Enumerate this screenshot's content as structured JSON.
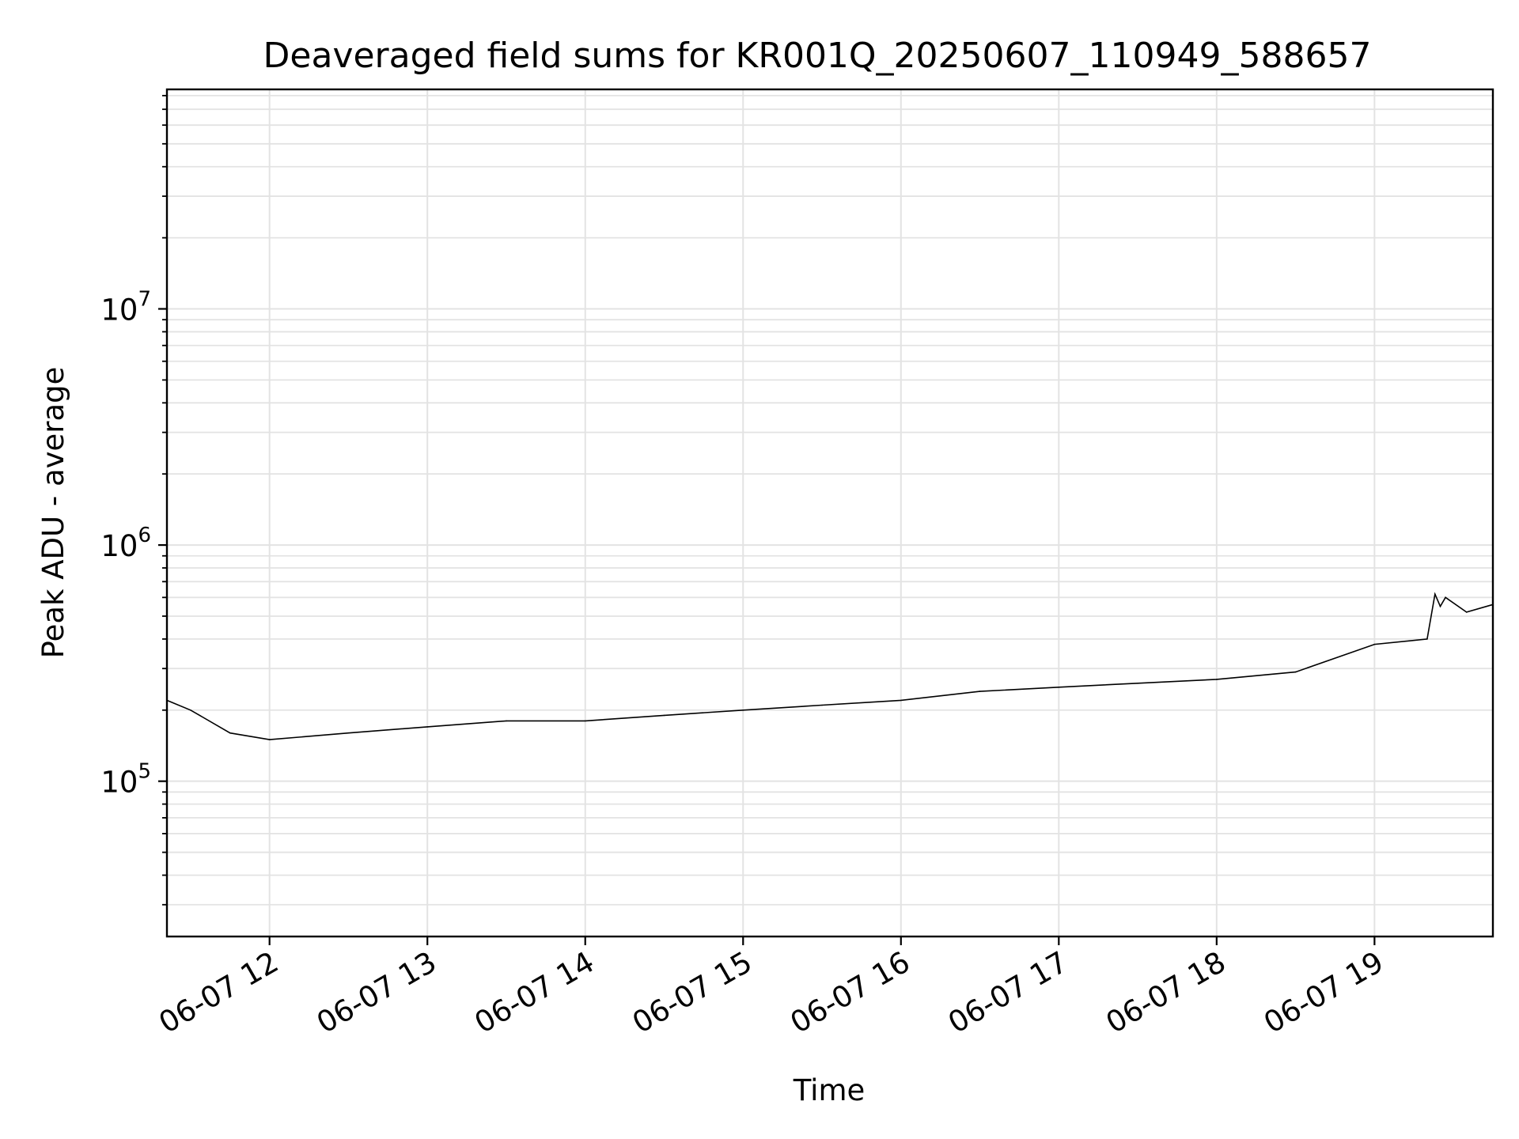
{
  "chart_data": {
    "type": "line",
    "title": "Deaveraged field sums for KR001Q_20250607_110949_588657",
    "xlabel": "Time",
    "ylabel": "Peak ADU - average",
    "yscale": "log",
    "xlim": [
      "2025-06-07 11:21",
      "2025-06-07 19:45"
    ],
    "ylim": [
      22000,
      85000000
    ],
    "xticks": [
      {
        "value": "2025-06-07 12:00",
        "label": "06-07 12"
      },
      {
        "value": "2025-06-07 13:00",
        "label": "06-07 13"
      },
      {
        "value": "2025-06-07 14:00",
        "label": "06-07 14"
      },
      {
        "value": "2025-06-07 15:00",
        "label": "06-07 15"
      },
      {
        "value": "2025-06-07 16:00",
        "label": "06-07 16"
      },
      {
        "value": "2025-06-07 17:00",
        "label": "06-07 17"
      },
      {
        "value": "2025-06-07 18:00",
        "label": "06-07 18"
      },
      {
        "value": "2025-06-07 19:00",
        "label": "06-07 19"
      }
    ],
    "yticks": [
      {
        "value": 100000,
        "base": "10",
        "exp": "5"
      },
      {
        "value": 1000000,
        "base": "10",
        "exp": "6"
      },
      {
        "value": 10000000,
        "base": "10",
        "exp": "7"
      }
    ],
    "grid": true,
    "series": [
      {
        "color": "#000000",
        "x": [
          "2025-06-07 11:21",
          "2025-06-07 11:30",
          "2025-06-07 11:45",
          "2025-06-07 12:00",
          "2025-06-07 12:30",
          "2025-06-07 13:00",
          "2025-06-07 13:30",
          "2025-06-07 14:00",
          "2025-06-07 14:30",
          "2025-06-07 15:00",
          "2025-06-07 15:30",
          "2025-06-07 16:00",
          "2025-06-07 16:30",
          "2025-06-07 17:00",
          "2025-06-07 17:30",
          "2025-06-07 18:00",
          "2025-06-07 18:30",
          "2025-06-07 19:00",
          "2025-06-07 19:20",
          "2025-06-07 19:23",
          "2025-06-07 19:25",
          "2025-06-07 19:27",
          "2025-06-07 19:35",
          "2025-06-07 19:45"
        ],
        "y": [
          220000,
          200000,
          160000,
          150000,
          160000,
          170000,
          180000,
          180000,
          190000,
          200000,
          210000,
          220000,
          240000,
          250000,
          260000,
          270000,
          290000,
          380000,
          400000,
          620000,
          550000,
          600000,
          520000,
          560000
        ]
      }
    ]
  }
}
